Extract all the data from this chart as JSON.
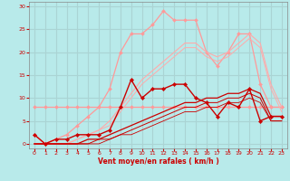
{
  "xlabel": "Vent moyen/en rafales ( km/h )",
  "xlim": [
    -0.5,
    23.5
  ],
  "ylim": [
    -1,
    31
  ],
  "yticks": [
    0,
    5,
    10,
    15,
    20,
    25,
    30
  ],
  "xticks": [
    0,
    1,
    2,
    3,
    4,
    5,
    6,
    7,
    8,
    9,
    10,
    11,
    12,
    13,
    14,
    15,
    16,
    17,
    18,
    19,
    20,
    21,
    22,
    23
  ],
  "bg_color": "#b8eaea",
  "grid_color": "#aad4d4",
  "series": [
    {
      "x": [
        0,
        1,
        2,
        3,
        4,
        5,
        6,
        7,
        8,
        9,
        10,
        11,
        12,
        13,
        14,
        15,
        16,
        17,
        18,
        19,
        20,
        21,
        22,
        23
      ],
      "y": [
        2,
        0,
        1,
        2,
        4,
        6,
        8,
        12,
        20,
        24,
        24,
        26,
        29,
        27,
        27,
        27,
        20,
        17,
        20,
        24,
        24,
        13,
        8,
        8
      ],
      "color": "#ff9999",
      "linewidth": 0.9,
      "marker": "D",
      "markersize": 2.0
    },
    {
      "x": [
        0,
        1,
        2,
        3,
        4,
        5,
        6,
        7,
        8,
        9,
        10,
        11,
        12,
        13,
        14,
        15,
        16,
        17,
        18,
        19,
        20,
        21,
        22,
        23
      ],
      "y": [
        8,
        8,
        8,
        8,
        8,
        8,
        8,
        8,
        8,
        8,
        8,
        8,
        8,
        8,
        8,
        8,
        8,
        8,
        8,
        8,
        8,
        8,
        8,
        8
      ],
      "color": "#ff9999",
      "linewidth": 0.9,
      "marker": "D",
      "markersize": 2.0
    },
    {
      "x": [
        0,
        1,
        2,
        3,
        4,
        5,
        6,
        7,
        8,
        9,
        10,
        11,
        12,
        13,
        14,
        15,
        16,
        17,
        18,
        19,
        20,
        21,
        22,
        23
      ],
      "y": [
        0,
        0,
        0,
        0,
        1,
        2,
        3,
        5,
        8,
        11,
        14,
        16,
        18,
        20,
        22,
        22,
        20,
        19,
        20,
        22,
        24,
        22,
        13,
        8
      ],
      "color": "#ffaaaa",
      "linewidth": 0.8,
      "marker": null,
      "markersize": 0
    },
    {
      "x": [
        0,
        1,
        2,
        3,
        4,
        5,
        6,
        7,
        8,
        9,
        10,
        11,
        12,
        13,
        14,
        15,
        16,
        17,
        18,
        19,
        20,
        21,
        22,
        23
      ],
      "y": [
        0,
        0,
        0,
        0,
        1,
        2,
        3,
        4,
        7,
        10,
        13,
        15,
        17,
        19,
        21,
        21,
        19,
        18,
        19,
        21,
        23,
        21,
        12,
        7
      ],
      "color": "#ffaaaa",
      "linewidth": 0.7,
      "marker": null,
      "markersize": 0
    },
    {
      "x": [
        0,
        1,
        2,
        3,
        4,
        5,
        6,
        7,
        8,
        9,
        10,
        11,
        12,
        13,
        14,
        15,
        16,
        17,
        18,
        19,
        20,
        21,
        22,
        23
      ],
      "y": [
        2,
        0,
        1,
        1,
        2,
        2,
        2,
        3,
        8,
        14,
        10,
        12,
        12,
        13,
        13,
        10,
        9,
        6,
        9,
        8,
        12,
        5,
        6,
        6
      ],
      "color": "#cc0000",
      "linewidth": 1.0,
      "marker": "D",
      "markersize": 2.2
    },
    {
      "x": [
        0,
        1,
        2,
        3,
        4,
        5,
        6,
        7,
        8,
        9,
        10,
        11,
        12,
        13,
        14,
        15,
        16,
        17,
        18,
        19,
        20,
        21,
        22,
        23
      ],
      "y": [
        0,
        0,
        0,
        0,
        0,
        1,
        1,
        2,
        3,
        4,
        5,
        6,
        7,
        8,
        9,
        9,
        10,
        10,
        11,
        11,
        12,
        11,
        6,
        6
      ],
      "color": "#cc0000",
      "linewidth": 0.9,
      "marker": null,
      "markersize": 0
    },
    {
      "x": [
        0,
        1,
        2,
        3,
        4,
        5,
        6,
        7,
        8,
        9,
        10,
        11,
        12,
        13,
        14,
        15,
        16,
        17,
        18,
        19,
        20,
        21,
        22,
        23
      ],
      "y": [
        0,
        0,
        0,
        0,
        0,
        0,
        1,
        1,
        2,
        3,
        4,
        5,
        6,
        7,
        8,
        8,
        9,
        9,
        10,
        10,
        11,
        10,
        5,
        5
      ],
      "color": "#cc0000",
      "linewidth": 0.7,
      "marker": null,
      "markersize": 0
    },
    {
      "x": [
        0,
        1,
        2,
        3,
        4,
        5,
        6,
        7,
        8,
        9,
        10,
        11,
        12,
        13,
        14,
        15,
        16,
        17,
        18,
        19,
        20,
        21,
        22,
        23
      ],
      "y": [
        0,
        0,
        0,
        0,
        0,
        0,
        0,
        1,
        2,
        2,
        3,
        4,
        5,
        6,
        7,
        7,
        8,
        8,
        9,
        9,
        10,
        9,
        5,
        5
      ],
      "color": "#cc0000",
      "linewidth": 0.6,
      "marker": null,
      "markersize": 0
    }
  ]
}
